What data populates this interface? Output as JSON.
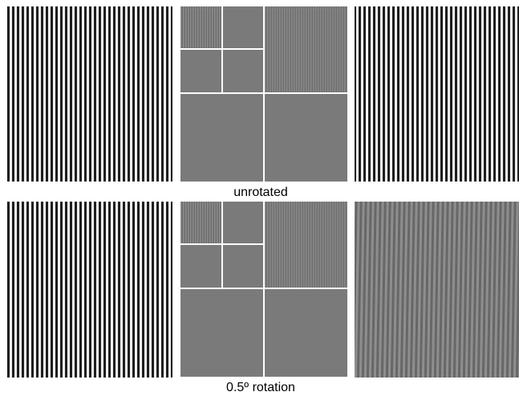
{
  "rows": [
    {
      "caption": "unrotated"
    },
    {
      "caption": "0.5º rotation"
    }
  ]
}
